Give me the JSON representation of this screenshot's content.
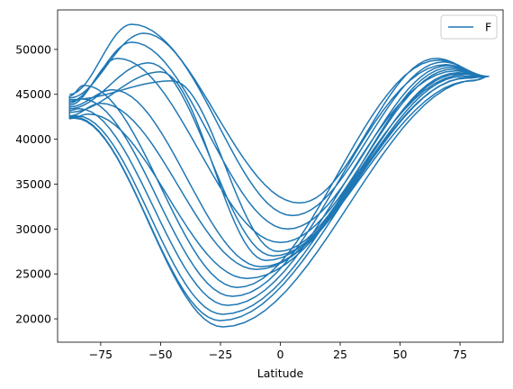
{
  "chart_data": {
    "type": "line",
    "title": "",
    "xlabel": "Latitude",
    "ylabel": "",
    "xlim": [
      -93,
      93
    ],
    "ylim": [
      17400,
      54400
    ],
    "x_ticks": [
      -75,
      -50,
      -25,
      0,
      25,
      50,
      75
    ],
    "x_tick_labels": [
      "−75",
      "−50",
      "−25",
      "0",
      "25",
      "50",
      "75"
    ],
    "y_ticks": [
      20000,
      25000,
      30000,
      35000,
      40000,
      45000,
      50000
    ],
    "y_tick_labels": [
      "20000",
      "25000",
      "30000",
      "35000",
      "40000",
      "45000",
      "50000"
    ],
    "grid": false,
    "legend_position": "upper-right",
    "series": [
      {
        "name": "F",
        "color": "#1f77b4",
        "orbits": [
          {
            "start_lat": -88,
            "start_F": 45000,
            "south_dip_lat": -62,
            "south_F": 52800,
            "equator_min_lat": 8,
            "equator_min_F": 32900,
            "north_peak_lat": 65,
            "north_F": 49000,
            "end_lat": 87,
            "end_F": 47000
          },
          {
            "start_lat": -88,
            "start_F": 44600,
            "south_dip_lat": -57,
            "south_F": 51800,
            "equator_min_lat": 5,
            "equator_min_F": 31500,
            "north_peak_lat": 68,
            "north_F": 48600,
            "end_lat": 87,
            "end_F": 47000
          },
          {
            "start_lat": -88,
            "start_F": 44200,
            "south_dip_lat": -62,
            "south_F": 50800,
            "equator_min_lat": 3,
            "equator_min_F": 30000,
            "north_peak_lat": 70,
            "north_F": 48200,
            "end_lat": 87,
            "end_F": 47000
          },
          {
            "start_lat": -88,
            "start_F": 43800,
            "south_dip_lat": -68,
            "south_F": 49000,
            "equator_min_lat": 0,
            "equator_min_F": 28500,
            "north_peak_lat": 72,
            "north_F": 47800,
            "end_lat": 87,
            "end_F": 47000
          },
          {
            "start_lat": -88,
            "start_F": 43400,
            "south_dip_lat": -55,
            "south_F": 48500,
            "equator_min_lat": -3,
            "equator_min_F": 27000,
            "north_peak_lat": 74,
            "north_F": 47400,
            "end_lat": 87,
            "end_F": 47000
          },
          {
            "start_lat": -88,
            "start_F": 43000,
            "south_dip_lat": -50,
            "south_F": 47500,
            "equator_min_lat": -6,
            "equator_min_F": 26500,
            "north_peak_lat": 76,
            "north_F": 47000,
            "end_lat": 87,
            "end_F": 47000
          },
          {
            "start_lat": -88,
            "start_F": 42600,
            "south_dip_lat": -75,
            "south_F": 44000,
            "equator_min_lat": -10,
            "equator_min_F": 25500,
            "north_peak_lat": 78,
            "north_F": 46800,
            "end_lat": 87,
            "end_F": 47000
          },
          {
            "start_lat": -88,
            "start_F": 42300,
            "south_dip_lat": -80,
            "south_F": 42800,
            "equator_min_lat": -14,
            "equator_min_F": 24500,
            "north_peak_lat": 80,
            "north_F": 46500,
            "end_lat": 87,
            "end_F": 47000
          },
          {
            "start_lat": -88,
            "start_F": 44800,
            "south_dip_lat": -82,
            "south_F": 46000,
            "equator_min_lat": -18,
            "equator_min_F": 23500,
            "north_peak_lat": 66,
            "north_F": 48800,
            "end_lat": 87,
            "end_F": 47000
          },
          {
            "start_lat": -88,
            "start_F": 44000,
            "south_dip_lat": -83,
            "south_F": 44500,
            "equator_min_lat": -20,
            "equator_min_F": 22500,
            "north_peak_lat": 69,
            "north_F": 48300,
            "end_lat": 87,
            "end_F": 47000
          },
          {
            "start_lat": -88,
            "start_F": 43200,
            "south_dip_lat": -84,
            "south_F": 43400,
            "equator_min_lat": -22,
            "equator_min_F": 21500,
            "north_peak_lat": 73,
            "north_F": 47600,
            "end_lat": 87,
            "end_F": 47000
          },
          {
            "start_lat": -88,
            "start_F": 42500,
            "south_dip_lat": -85,
            "south_F": 42600,
            "equator_min_lat": -24,
            "equator_min_F": 20500,
            "north_peak_lat": 77,
            "north_F": 47200,
            "end_lat": 87,
            "end_F": 47000
          },
          {
            "start_lat": -88,
            "start_F": 42400,
            "south_dip_lat": -86,
            "south_F": 42450,
            "equator_min_lat": -25,
            "equator_min_F": 19800,
            "north_peak_lat": 79,
            "north_F": 46900,
            "end_lat": 87,
            "end_F": 47000
          },
          {
            "start_lat": -88,
            "start_F": 42300,
            "south_dip_lat": -86,
            "south_F": 42350,
            "equator_min_lat": -24,
            "equator_min_F": 19100,
            "north_peak_lat": 82,
            "north_F": 46600,
            "end_lat": 87,
            "end_F": 47000
          },
          {
            "start_lat": -88,
            "start_F": 44400,
            "south_dip_lat": -45,
            "south_F": 46500,
            "equator_min_lat": -1,
            "equator_min_F": 27500,
            "north_peak_lat": 71,
            "north_F": 48000,
            "end_lat": 87,
            "end_F": 47000
          },
          {
            "start_lat": -88,
            "start_F": 43600,
            "south_dip_lat": -70,
            "south_F": 45500,
            "equator_min_lat": -8,
            "equator_min_F": 25800,
            "north_peak_lat": 75,
            "north_F": 47300,
            "end_lat": 87,
            "end_F": 47000
          }
        ]
      }
    ]
  }
}
